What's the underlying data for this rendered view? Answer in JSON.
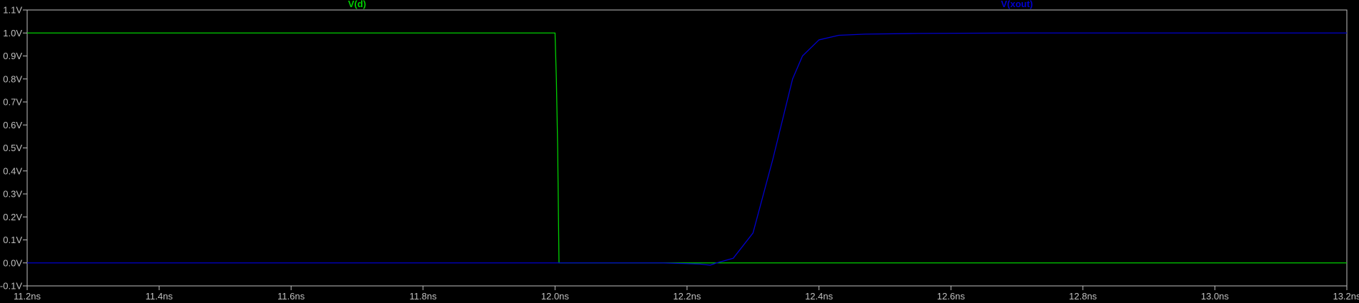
{
  "colors": {
    "background": "#000000",
    "frame": "#c0c0c0",
    "text": "#c0c0c0",
    "vd": "#00d000",
    "vxout": "#0000cd"
  },
  "chart_data": {
    "type": "line",
    "title": "",
    "xlabel": "",
    "ylabel": "",
    "grid": false,
    "xlim": [
      11.2,
      13.2
    ],
    "ylim": [
      -0.1,
      1.1
    ],
    "x_ticks": [
      11.2,
      11.4,
      11.6,
      11.8,
      12.0,
      12.2,
      12.4,
      12.6,
      12.8,
      13.0,
      13.2
    ],
    "x_tick_labels": [
      "11.2ns",
      "11.4ns",
      "11.6ns",
      "11.8ns",
      "12.0ns",
      "12.2ns",
      "12.4ns",
      "12.6ns",
      "12.8ns",
      "13.0ns",
      "13.2ns"
    ],
    "y_ticks": [
      -0.1,
      0.0,
      0.1,
      0.2,
      0.3,
      0.4,
      0.5,
      0.6,
      0.7,
      0.8,
      0.9,
      1.0,
      1.1
    ],
    "y_tick_labels": [
      "-0.1V",
      "0.0V",
      "0.1V",
      "0.2V",
      "0.3V",
      "0.4V",
      "0.5V",
      "0.6V",
      "0.7V",
      "0.8V",
      "0.9V",
      "1.0V",
      "1.1V"
    ],
    "legend_placement": "top",
    "series": [
      {
        "name": "V(d)",
        "color": "#00d000",
        "x": [
          11.2,
          12.0,
          12.002,
          12.004,
          12.006,
          13.2
        ],
        "y": [
          1.0,
          1.0,
          0.8,
          0.5,
          0.0,
          0.0
        ]
      },
      {
        "name": "V(xout)",
        "color": "#0000cd",
        "x": [
          11.2,
          12.16,
          12.2,
          12.22,
          12.235,
          12.245,
          12.27,
          12.3,
          12.33,
          12.36,
          12.375,
          12.4,
          12.43,
          12.47,
          12.55,
          12.7,
          13.2
        ],
        "y": [
          0.0,
          0.0,
          -0.003,
          -0.005,
          -0.01,
          0.0,
          0.02,
          0.13,
          0.45,
          0.8,
          0.9,
          0.97,
          0.99,
          0.995,
          0.998,
          1.0,
          1.0
        ]
      }
    ]
  }
}
